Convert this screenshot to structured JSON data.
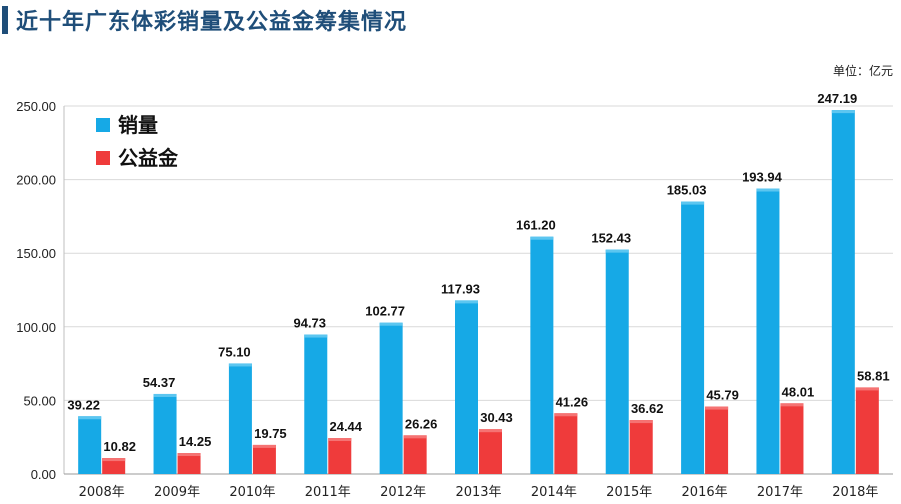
{
  "page": {
    "title": "近十年广东体彩销量及公益金筹集情况",
    "unit": "单位：亿元"
  },
  "chart_data": {
    "type": "bar",
    "title": "近十年广东体彩销量及公益金筹集情况",
    "xlabel": "",
    "ylabel": "",
    "ylim": [
      0,
      250
    ],
    "yticks": [
      "0.00",
      "50.00",
      "100.00",
      "150.00",
      "200.00",
      "250.00"
    ],
    "categories": [
      "2008年",
      "2009年",
      "2010年",
      "2011年",
      "2012年",
      "2013年",
      "2014年",
      "2015年",
      "2016年",
      "2017年",
      "2018年"
    ],
    "series": [
      {
        "name": "销量",
        "color": "#16a9e6",
        "values": [
          39.22,
          54.37,
          75.1,
          94.73,
          102.77,
          117.93,
          161.2,
          152.43,
          185.03,
          193.94,
          247.19
        ],
        "labels": [
          "39.22",
          "54.37",
          "75.10",
          "94.73",
          "102.77",
          "117.93",
          "161.20",
          "152.43",
          "185.03",
          "193.94",
          "247.19"
        ]
      },
      {
        "name": "公益金",
        "color": "#ef3b3b",
        "values": [
          10.82,
          14.25,
          19.75,
          24.44,
          26.26,
          30.43,
          41.26,
          36.62,
          45.79,
          48.01,
          58.81
        ],
        "labels": [
          "10.82",
          "14.25",
          "19.75",
          "24.44",
          "26.26",
          "30.43",
          "41.26",
          "36.62",
          "45.79",
          "48.01",
          "58.81"
        ]
      }
    ],
    "grid": true,
    "legend": "top-left"
  }
}
